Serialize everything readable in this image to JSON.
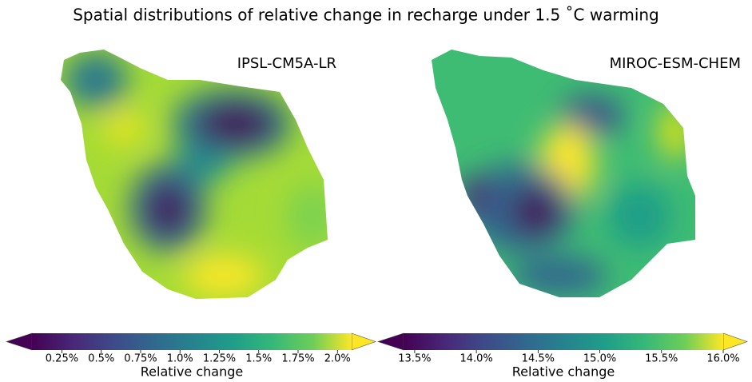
{
  "title": "Spatial distributions of relative change in recharge under 1.5 ˚C warming",
  "panels": [
    {
      "title": "IPSL-CM5A-LR",
      "colorbar": {
        "label": "Relative change",
        "lim": [
          0.06,
          2.09
        ],
        "ticks": [
          {
            "value": 0.25,
            "label": "0.25%"
          },
          {
            "value": 0.5,
            "label": "0.5%"
          },
          {
            "value": 0.75,
            "label": "0.75%"
          },
          {
            "value": 1.0,
            "label": "1.0%"
          },
          {
            "value": 1.25,
            "label": "1.25%"
          },
          {
            "value": 1.5,
            "label": "1.5%"
          },
          {
            "value": 1.75,
            "label": "1.75%"
          },
          {
            "value": 2.0,
            "label": "2.0%"
          }
        ]
      }
    },
    {
      "title": "MIROC-ESM-CHEM",
      "colorbar": {
        "label": "Relative change",
        "lim": [
          13.41,
          16.0
        ],
        "ticks": [
          {
            "value": 13.5,
            "label": "13.5%"
          },
          {
            "value": 14.0,
            "label": "14.0%"
          },
          {
            "value": 14.5,
            "label": "14.5%"
          },
          {
            "value": 15.0,
            "label": "15.0%"
          },
          {
            "value": 15.5,
            "label": "15.5%"
          },
          {
            "value": 16.0,
            "label": "16.0%"
          }
        ]
      }
    }
  ]
}
